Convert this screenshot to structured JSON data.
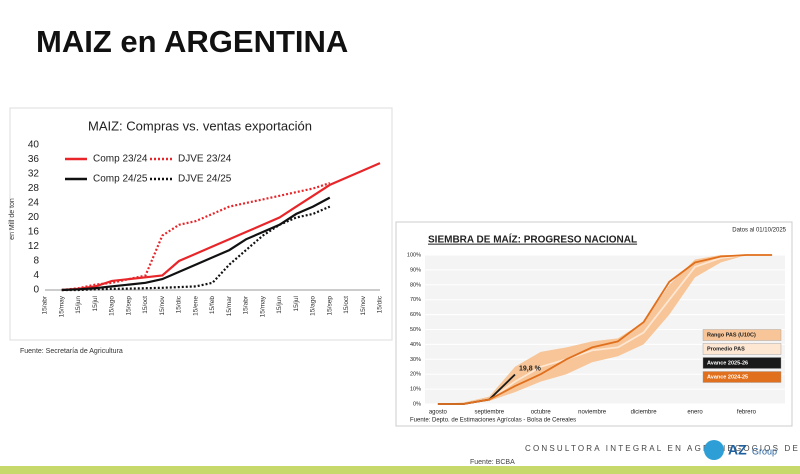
{
  "title": "MAIZ en ARGENTINA",
  "source_left": "Fuente: Secretaría de Agricultura",
  "footer": "CONSULTORA INTEGRAL EN AGRONEGOCIOS DE LATAM",
  "footer_source": "Fuente: BCBA",
  "logo": {
    "mark": "AZ",
    "text": "Group"
  },
  "chart_data": [
    {
      "type": "line",
      "title": "MAIZ: Compras vs. ventas exportación",
      "ylabel": "en Mill de ton",
      "categories": [
        "15/abr",
        "15/may",
        "15/jun",
        "15/jul",
        "15/ago",
        "15/sep",
        "15/oct",
        "15/nov",
        "15/dic",
        "15/ene",
        "15/feb",
        "15/mar",
        "15/abr",
        "15/may",
        "15/jun",
        "15/jul",
        "15/ago",
        "15/sep",
        "15/oct",
        "15/nov",
        "15/dic"
      ],
      "ylim": [
        0,
        40
      ],
      "yticks": [
        0,
        4,
        8,
        12,
        16,
        20,
        24,
        28,
        32,
        36,
        40
      ],
      "grid": false,
      "series": [
        {
          "name": "Comp 23/24",
          "color": "#e8262a",
          "dash": false,
          "values": [
            null,
            0,
            0.3,
            1,
            2.5,
            3,
            3.5,
            4,
            8,
            10,
            12,
            14,
            16,
            18,
            20,
            23,
            26,
            29,
            31,
            33,
            35
          ]
        },
        {
          "name": "DJVE 23/24",
          "color": "#e8262a",
          "dash": true,
          "values": [
            null,
            0,
            0.5,
            1.5,
            2,
            3,
            4,
            15,
            18,
            19,
            21,
            23,
            24,
            25,
            26,
            27,
            28,
            29.5,
            null,
            null,
            null
          ]
        },
        {
          "name": "Comp 24/25",
          "color": "#111111",
          "dash": false,
          "values": [
            null,
            0,
            0.2,
            0.5,
            1,
            1.5,
            2,
            3,
            5,
            7,
            9,
            11,
            14,
            16,
            18,
            21,
            23,
            25.5,
            null,
            null,
            null
          ]
        },
        {
          "name": "DJVE 24/25",
          "color": "#111111",
          "dash": true,
          "values": [
            null,
            0,
            0,
            0.2,
            0.3,
            0.4,
            0.5,
            0.6,
            0.8,
            1,
            2,
            7,
            11,
            15,
            18,
            20,
            21,
            23,
            null,
            null,
            null
          ]
        }
      ]
    },
    {
      "type": "progress",
      "title": "SIEMBRA DE MAÍZ: PROGRESO NACIONAL",
      "subtitle": "Datos al 01/10/2025",
      "source": "Fuente: Depto. de Estimaciones Agrícolas - Bolsa de Cereales",
      "categories": [
        "agosto",
        null,
        "septiembre",
        null,
        "octubre",
        null,
        "noviembre",
        null,
        "diciembre",
        null,
        "enero",
        null,
        "febrero",
        null
      ],
      "ylim": [
        0,
        100
      ],
      "yticks": [
        {
          "value": 0,
          "label": "0%"
        },
        {
          "value": 10,
          "label": "10%"
        },
        {
          "value": 20,
          "label": "20%"
        },
        {
          "value": 30,
          "label": "30%"
        },
        {
          "value": 40,
          "label": "40%"
        },
        {
          "value": 50,
          "label": "50%"
        },
        {
          "value": 60,
          "label": "60%"
        },
        {
          "value": 70,
          "label": "70%"
        },
        {
          "value": 80,
          "label": "80%"
        },
        {
          "value": 90,
          "label": "90%"
        },
        {
          "value": 100,
          "label": "100%"
        }
      ],
      "grid": true,
      "series": [
        {
          "name": "Rango PAS (U10C)",
          "color": "#f7c597",
          "band": true,
          "low": [
            0,
            0,
            2,
            8,
            15,
            20,
            28,
            32,
            40,
            60,
            85,
            95,
            100,
            100
          ],
          "high": [
            0,
            1,
            5,
            25,
            35,
            38,
            42,
            44,
            55,
            80,
            97,
            100,
            100,
            100
          ]
        },
        {
          "name": "Promedio PAS",
          "color": "#fde6d2",
          "values": [
            0,
            0,
            3,
            15,
            25,
            30,
            36,
            38,
            48,
            70,
            92,
            98,
            100,
            100
          ]
        },
        {
          "name": "Avance 2025-26",
          "color": "#1a1a1a",
          "values": [
            0,
            0,
            3,
            19.8,
            null,
            null,
            null,
            null,
            null,
            null,
            null,
            null,
            null,
            null
          ],
          "value_labels": [
            null,
            null,
            null,
            "19,8 %",
            null,
            null,
            null,
            null,
            null,
            null,
            null,
            null,
            null,
            null
          ]
        },
        {
          "name": "Avance 2024-25",
          "color": "#e0701e",
          "values": [
            0,
            0,
            3,
            12,
            20,
            30,
            38,
            42,
            55,
            82,
            95,
            99,
            100,
            100
          ]
        }
      ]
    }
  ]
}
